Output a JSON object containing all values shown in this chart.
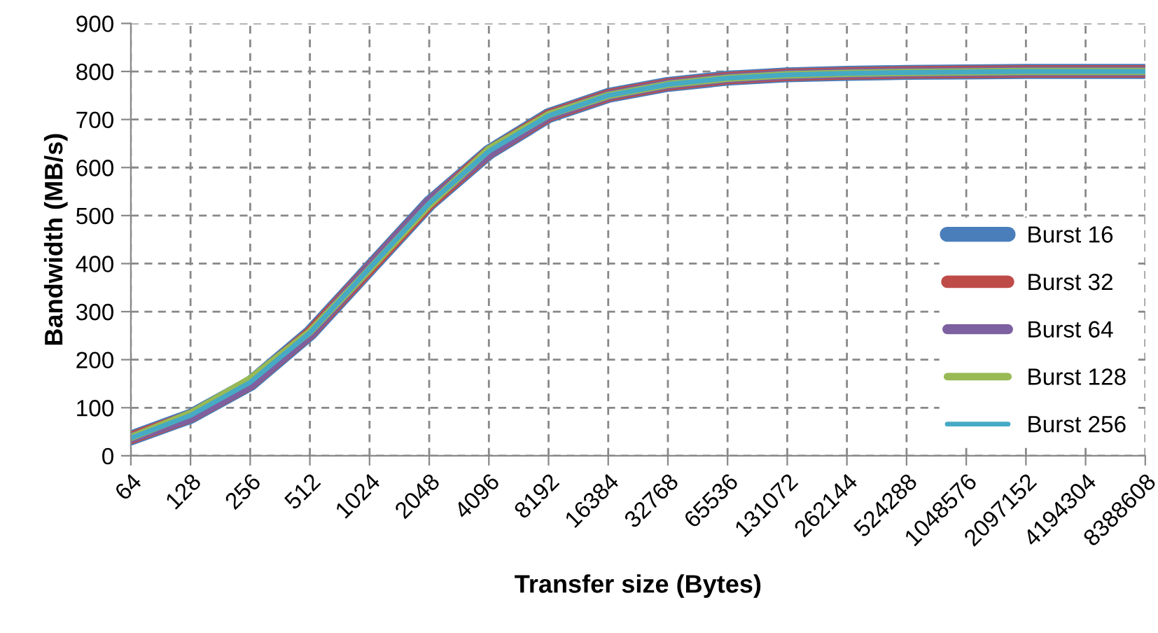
{
  "chart_data": {
    "type": "line",
    "xlabel": "Transfer size (Bytes)",
    "ylabel": "Bandwidth (MB/s)",
    "categories": [
      "64",
      "128",
      "256",
      "512",
      "1024",
      "2048",
      "4096",
      "8192",
      "16384",
      "32768",
      "65536",
      "131072",
      "262144",
      "524288",
      "1048576",
      "2097152",
      "4194304",
      "8388608"
    ],
    "series": [
      {
        "name": "Burst 16",
        "color": "#4a7ebb",
        "values": [
          37,
          82,
          150,
          255,
          390,
          525,
          632,
          708,
          750,
          773,
          786,
          793,
          796,
          798,
          799,
          800,
          800,
          800
        ]
      },
      {
        "name": "Burst 32",
        "color": "#be4b48",
        "values": [
          37,
          82,
          150,
          255,
          390,
          525,
          632,
          708,
          750,
          773,
          786,
          793,
          796,
          798,
          799,
          800,
          800,
          800
        ]
      },
      {
        "name": "Burst 64",
        "color": "#7d60a0",
        "values": [
          37,
          80,
          148,
          253,
          392,
          528,
          630,
          708,
          750,
          773,
          786,
          793,
          796,
          798,
          799,
          800,
          800,
          800
        ]
      },
      {
        "name": "Burst 128",
        "color": "#98b954",
        "values": [
          38,
          88,
          160,
          258,
          388,
          522,
          638,
          710,
          750,
          773,
          786,
          793,
          796,
          798,
          799,
          800,
          800,
          800
        ]
      },
      {
        "name": "Burst 256",
        "color": "#46aac5",
        "values": [
          37,
          84,
          153,
          256,
          390,
          525,
          634,
          708,
          750,
          773,
          786,
          793,
          796,
          798,
          799,
          800,
          800,
          800
        ]
      }
    ],
    "ylim": [
      0,
      900
    ],
    "yticks": [
      0,
      100,
      200,
      300,
      400,
      500,
      600,
      700,
      800,
      900
    ],
    "grid": true,
    "legend": "right",
    "marker": "none",
    "line_style": "solid"
  }
}
